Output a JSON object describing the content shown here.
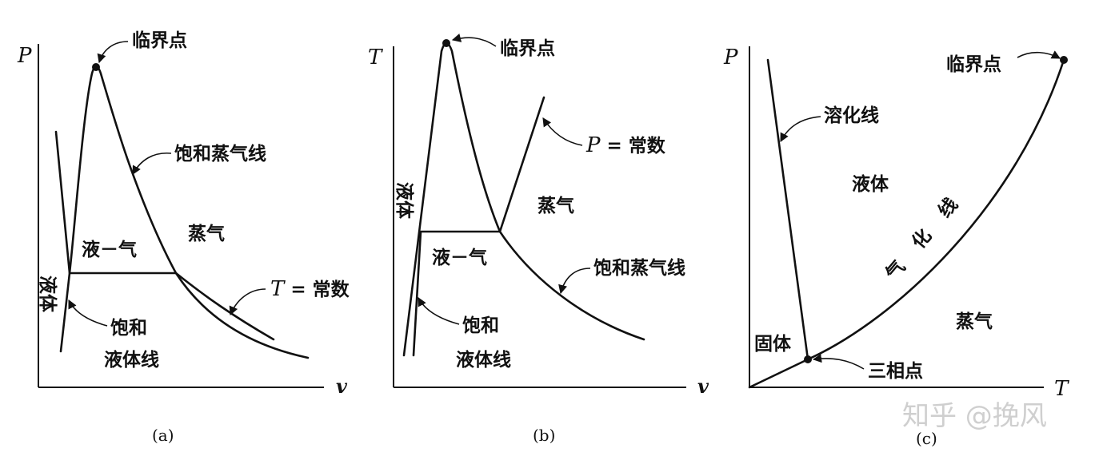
{
  "panels": {
    "a": {
      "caption": "(a)",
      "y_axis_label": "P",
      "x_axis_label": "v",
      "critical_point": "临界点",
      "saturated_vapor_line": "饱和蒸气线",
      "vapor": "蒸气",
      "liquid_vapor": "液－气",
      "liquid": "液体",
      "saturated_liquid_line": [
        "饱和",
        "液体线"
      ],
      "isotherm_symbol": "T",
      "isotherm_value": "= 常数"
    },
    "b": {
      "caption": "(b)",
      "y_axis_label": "T",
      "x_axis_label": "v",
      "critical_point": "临界点",
      "isobar_symbol": "P",
      "isobar_value": "= 常数",
      "vapor": "蒸气",
      "liquid": "液体",
      "liquid_vapor": "液－气",
      "saturated_vapor_line": "饱和蒸气线",
      "saturated_liquid_line": [
        "饱和",
        "液体线"
      ]
    },
    "c": {
      "caption": "(c)",
      "y_axis_label": "P",
      "x_axis_label": "T",
      "critical_point": "临界点",
      "fusion_line": "溶化线",
      "liquid": "液体",
      "vaporization_line": "气化线",
      "vapor": "蒸气",
      "solid": "固体",
      "triple_point": "三相点"
    }
  },
  "watermark": "知乎 @挽风",
  "colors": {
    "ink": "#111111",
    "watermark": "#cfcfcf"
  }
}
